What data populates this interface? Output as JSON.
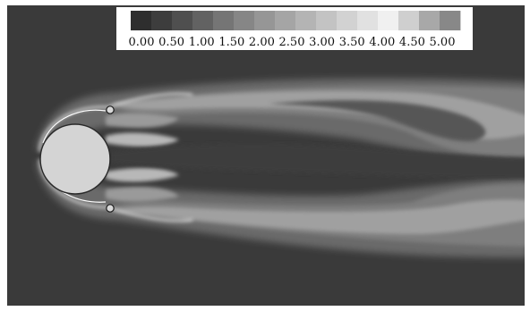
{
  "colorbar": {
    "tick_labels": [
      "0.00",
      "0.50",
      "1.00",
      "1.50",
      "2.00",
      "2.50",
      "3.00",
      "3.50",
      "4.00",
      "4.50",
      "5.00"
    ],
    "range": [
      0.0,
      5.0
    ],
    "band_colors": [
      "#2e2e2e",
      "#3d3d3d",
      "#4f4f4f",
      "#626262",
      "#757575",
      "#868686",
      "#969696",
      "#a5a5a5",
      "#b4b4b4",
      "#c3c3c3",
      "#d2d2d2",
      "#e1e1e1",
      "#f0f0f0",
      "#cfcfcf",
      "#a8a8a8",
      "#888888"
    ]
  },
  "colors": {
    "background": "#3a3a3a",
    "cylinder": "#d4d4d4",
    "wake_light": "#c8c8c8",
    "wake_mid": "#8a8a8a",
    "wake_dark": "#5e5e5e"
  }
}
